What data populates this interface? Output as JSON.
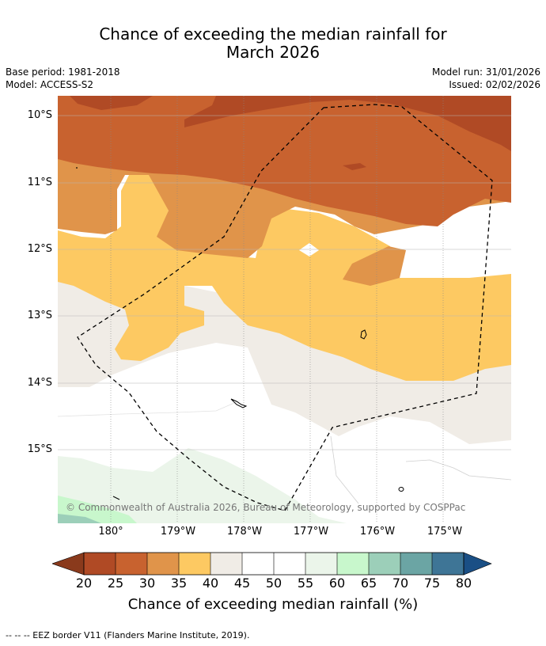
{
  "header": {
    "title_line1": "Chance of exceeding the median rainfall for",
    "title_line2": "March 2026",
    "base_period": "Base period: 1981-2018",
    "model": "Model: ACCESS-S2",
    "model_run": "Model run: 31/01/2026",
    "issued": "Issued: 02/02/2026"
  },
  "map": {
    "lat_labels": [
      "10°S",
      "11°S",
      "12°S",
      "13°S",
      "14°S",
      "15°S"
    ],
    "lon_labels": [
      "180°",
      "179°W",
      "178°W",
      "177°W",
      "176°W",
      "175°W"
    ],
    "copyright": "© Commonwealth of Australia 2026, Bureau of Meteorology, supported by COSPPac",
    "eez_label": "EEZ border"
  },
  "colorbar": {
    "title": "Chance of exceeding median rainfall (%)",
    "ticks": [
      "20",
      "25",
      "30",
      "35",
      "40",
      "45",
      "50",
      "55",
      "60",
      "65",
      "70",
      "75",
      "80"
    ],
    "under_color": "#8a3a1c",
    "over_color": "#1a4f85",
    "colors": [
      "#b04a25",
      "#c8622f",
      "#e0944a",
      "#fdc962",
      "#f0ece6",
      "#ffffff",
      "#ffffff",
      "#ebf5ea",
      "#c8f7cc",
      "#9ccfb9",
      "#6ba5a4",
      "#3e7596"
    ]
  },
  "footer": {
    "legend_line": "--  --  -- EEZ border V11 (Flanders Marine Institute, 2019)."
  },
  "chart_data": {
    "type": "filled-contour-map",
    "title": "Chance of exceeding the median rainfall for March 2026",
    "variable": "Chance of exceeding median rainfall (%)",
    "lat_range": [
      -16.05,
      -9.7
    ],
    "lon_range": [
      179.2,
      185.9
    ],
    "levels": [
      20,
      25,
      30,
      35,
      40,
      45,
      50,
      55,
      60,
      65,
      70,
      75,
      80
    ],
    "regions": [
      {
        "name": "north band",
        "range_pct": [
          25,
          30
        ]
      },
      {
        "name": "far north / north-east",
        "range_pct": [
          20,
          25
        ]
      },
      {
        "name": "west-central",
        "range_pct": [
          30,
          40
        ]
      },
      {
        "name": "central band",
        "range_pct": [
          35,
          40
        ]
      },
      {
        "name": "south-central",
        "range_pct": [
          40,
          45
        ]
      },
      {
        "name": "south",
        "range_pct": [
          45,
          55
        ]
      },
      {
        "name": "south-west corner",
        "range_pct": [
          55,
          70
        ]
      }
    ]
  }
}
